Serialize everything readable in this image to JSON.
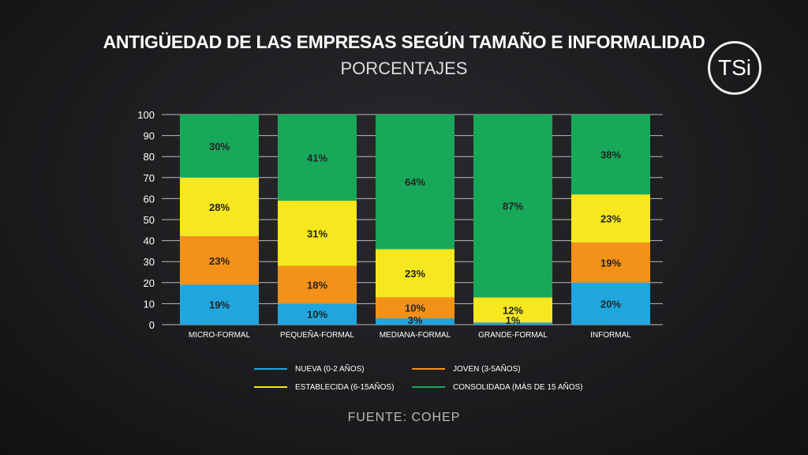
{
  "title": "ANTIGÜEDAD DE LAS EMPRESAS SEGÚN TAMAÑO E INFORMALIDAD",
  "subtitle": "PORCENTAJES",
  "source": "FUENTE: COHEP",
  "logo": "TSi",
  "chart_data": {
    "type": "bar",
    "stacked": true,
    "title": "ANTIGÜEDAD DE LAS EMPRESAS SEGÚN TAMAÑO E INFORMALIDAD",
    "subtitle": "PORCENTAJES",
    "categories": [
      "MICRO-FORMAL",
      "PEQUEÑA-FORMAL",
      "MEDIANA-FORMAL",
      "GRANDE-FORMAL",
      "INFORMAL"
    ],
    "ylim": [
      0,
      100
    ],
    "yticks": [
      0,
      10,
      20,
      30,
      40,
      50,
      60,
      70,
      80,
      90,
      100
    ],
    "grid": true,
    "legend_position": "bottom",
    "series": [
      {
        "name": "NUEVA (0-2 AÑOS)",
        "color": "#1fa6df",
        "values": [
          19,
          10,
          3,
          1,
          20
        ]
      },
      {
        "name": "JOVEN (3-5AÑOS)",
        "color": "#f39118",
        "values": [
          23,
          18,
          10,
          0,
          19
        ]
      },
      {
        "name": "ESTABLECIDA (6-15AÑOS)",
        "color": "#f6e71f",
        "values": [
          28,
          31,
          23,
          12,
          23
        ]
      },
      {
        "name": "CONSOLIDADA (MÁS DE 15 AÑOS)",
        "color": "#18a85a",
        "values": [
          30,
          41,
          64,
          87,
          38
        ]
      }
    ]
  }
}
